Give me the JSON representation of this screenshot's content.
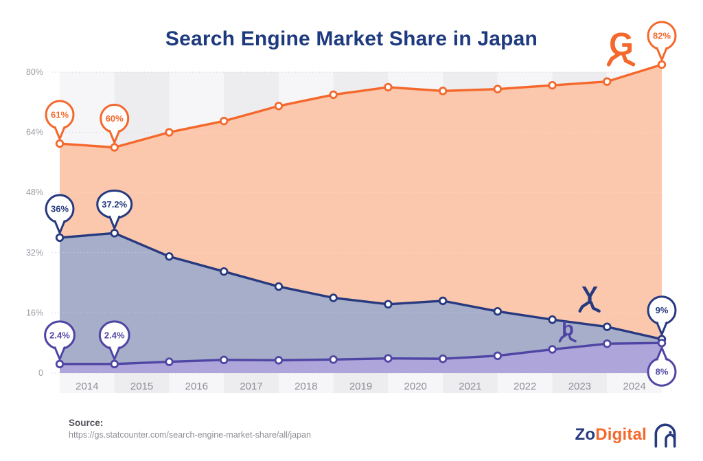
{
  "title": "Search Engine Market Share in Japan",
  "source": {
    "label": "Source:",
    "url": "https://gs.statcounter.com/search-engine-market-share/all/japan"
  },
  "branding": {
    "name_part1": "Zo",
    "name_part2": "Digital"
  },
  "colors": {
    "title": "#1e3a7e",
    "axis_text": "#9b9ba6",
    "year_text": "#8e8e99",
    "band_light": "#f6f6f8",
    "band_dark": "#ededf0",
    "grid": "#d9d9df",
    "source_label": "#50505a",
    "source_url": "#8e8e98",
    "logo_blue": "#27397f",
    "logo_orange": "#f4682c"
  },
  "chart_data": {
    "type": "area",
    "title": "Search Engine Market Share in Japan",
    "x_year_labels": [
      "2014",
      "2015",
      "2016",
      "2017",
      "2018",
      "2019",
      "2020",
      "2021",
      "2022",
      "2023",
      "2024"
    ],
    "points_note": "12 data points at year boundaries, 2014 through end of 2024",
    "y_axis": {
      "ticks": [
        "0",
        "16%",
        "32%",
        "48%",
        "64%",
        "80%"
      ],
      "range": [
        0,
        80
      ],
      "grid": true
    },
    "legend_position": "icons-on-plot",
    "series": [
      {
        "name": "Google",
        "badge_letter": "G",
        "icon": "google-g-runner-icon",
        "line_color": "#f4682c",
        "fill_color": "#fcc8ad",
        "values": [
          61,
          60,
          64,
          67,
          71,
          74,
          76,
          75,
          75.5,
          76.5,
          77.5,
          82
        ]
      },
      {
        "name": "Yahoo!",
        "badge_letter": "Y",
        "icon": "yahoo-y-runner-icon",
        "line_color": "#27397f",
        "fill_color": "#a6aec9",
        "values": [
          36,
          37.2,
          31,
          27,
          23,
          20,
          18.3,
          19.2,
          16.4,
          14.2,
          12.3,
          9
        ]
      },
      {
        "name": "Bing",
        "badge_letter": "b",
        "icon": "bing-b-runner-icon",
        "line_color": "#4f45a4",
        "fill_color": "#aea5da",
        "values": [
          2.4,
          2.4,
          3,
          3.5,
          3.4,
          3.6,
          3.9,
          3.8,
          4.6,
          6.3,
          7.8,
          8
        ]
      }
    ],
    "callouts": [
      {
        "series": "Google",
        "point": 0,
        "label": "61%",
        "tail": "down"
      },
      {
        "series": "Google",
        "point": 1,
        "label": "60%",
        "tail": "down"
      },
      {
        "series": "Google",
        "point": 11,
        "label": "82%",
        "tail": "down"
      },
      {
        "series": "Yahoo!",
        "point": 0,
        "label": "36%",
        "tail": "down"
      },
      {
        "series": "Yahoo!",
        "point": 1,
        "label": "37.2%",
        "tail": "down"
      },
      {
        "series": "Yahoo!",
        "point": 11,
        "label": "9%",
        "tail": "down"
      },
      {
        "series": "Bing",
        "point": 0,
        "label": "2.4%",
        "tail": "down"
      },
      {
        "series": "Bing",
        "point": 1,
        "label": "2.4%",
        "tail": "down"
      },
      {
        "series": "Bing",
        "point": 11,
        "label": "8%",
        "tail": "up"
      }
    ]
  }
}
